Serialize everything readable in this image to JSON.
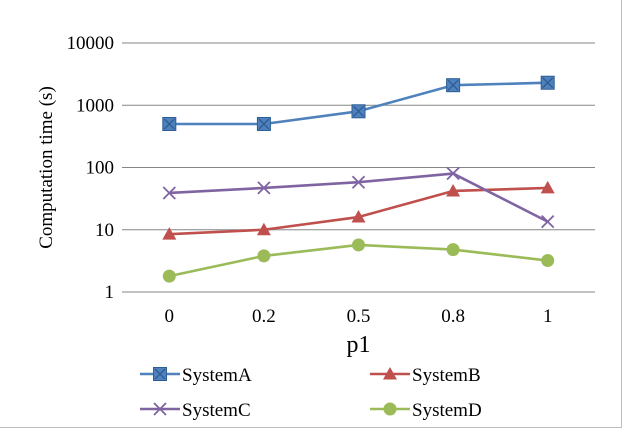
{
  "chart_data": {
    "type": "line",
    "xlabel": "p1",
    "ylabel": "Computation time (s)",
    "yscale": "log",
    "ylim": [
      1,
      10000
    ],
    "yticks": [
      "1",
      "10",
      "100",
      "1000",
      "10000"
    ],
    "categories": [
      "0",
      "0.2",
      "0.5",
      "0.8",
      "1"
    ],
    "grid": "horizontal",
    "legend_position": "bottom",
    "series": [
      {
        "name": "SystemA",
        "values": [
          500,
          500,
          800,
          2100,
          2300
        ],
        "color": "#4f81bd",
        "marker": "square-x"
      },
      {
        "name": "SystemB",
        "values": [
          8.5,
          10,
          16,
          42,
          47
        ],
        "color": "#c0504d",
        "marker": "triangle"
      },
      {
        "name": "SystemC",
        "values": [
          39,
          47,
          58,
          80,
          13.5
        ],
        "color": "#8064a2",
        "marker": "x"
      },
      {
        "name": "SystemD",
        "values": [
          1.8,
          3.8,
          5.7,
          4.8,
          3.2
        ],
        "color": "#9bbb59",
        "marker": "circle"
      }
    ]
  }
}
